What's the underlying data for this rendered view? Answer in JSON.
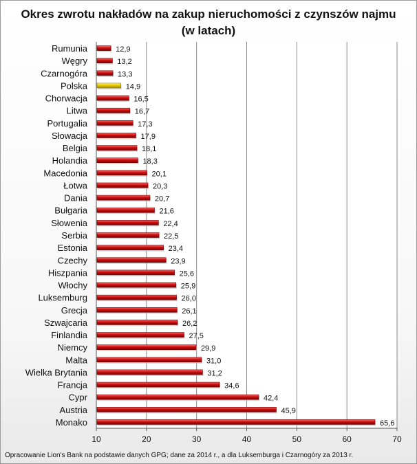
{
  "chart_data": {
    "type": "bar",
    "orientation": "horizontal",
    "title": [
      "Okres zwrotu nakładów na zakup nieruchomości z czynszów najmu",
      "(w latach)"
    ],
    "categories": [
      "Rumunia",
      "Węgry",
      "Czarnogóra",
      "Polska",
      "Chorwacja",
      "Litwa",
      "Portugalia",
      "Słowacja",
      "Belgia",
      "Holandia",
      "Macedonia",
      "Łotwa",
      "Dania",
      "Bułgaria",
      "Słowenia",
      "Serbia",
      "Estonia",
      "Czechy",
      "Hiszpania",
      "Włochy",
      "Luksemburg",
      "Grecja",
      "Szwajcaria",
      "Finlandia",
      "Niemcy",
      "Malta",
      "Wielka Brytania",
      "Francja",
      "Cypr",
      "Austria",
      "Monako"
    ],
    "values": [
      12.9,
      13.2,
      13.3,
      14.9,
      16.5,
      16.7,
      17.3,
      17.9,
      18.1,
      18.3,
      20.1,
      20.3,
      20.7,
      21.6,
      22.4,
      22.5,
      23.4,
      23.9,
      25.6,
      25.9,
      26.0,
      26.1,
      26.2,
      27.5,
      29.9,
      31.0,
      31.2,
      34.6,
      42.4,
      45.9,
      65.6
    ],
    "value_labels": [
      "12,9",
      "13,2",
      "13,3",
      "14,9",
      "16,5",
      "16,7",
      "17,3",
      "17,9",
      "18,1",
      "18,3",
      "20,1",
      "20,3",
      "20,7",
      "21,6",
      "22,4",
      "22,5",
      "23,4",
      "23,9",
      "25,6",
      "25,9",
      "26,0",
      "26,1",
      "26,2",
      "27,5",
      "29,9",
      "31,0",
      "31,2",
      "34,6",
      "42,4",
      "45,9",
      "65,6"
    ],
    "highlight": "Polska",
    "xlim": [
      10,
      70
    ],
    "xticks": [
      "10",
      "20",
      "30",
      "40",
      "50",
      "60",
      "70"
    ],
    "grid": "vertical",
    "bar_color": "#cc1111",
    "highlight_color": "#e6cc00",
    "source": "Opracowanie Lion's Bank na podstawie danych GPG; dane za 2014 r., a dla Luksemburga i Czarnogóry za 2013 r."
  }
}
